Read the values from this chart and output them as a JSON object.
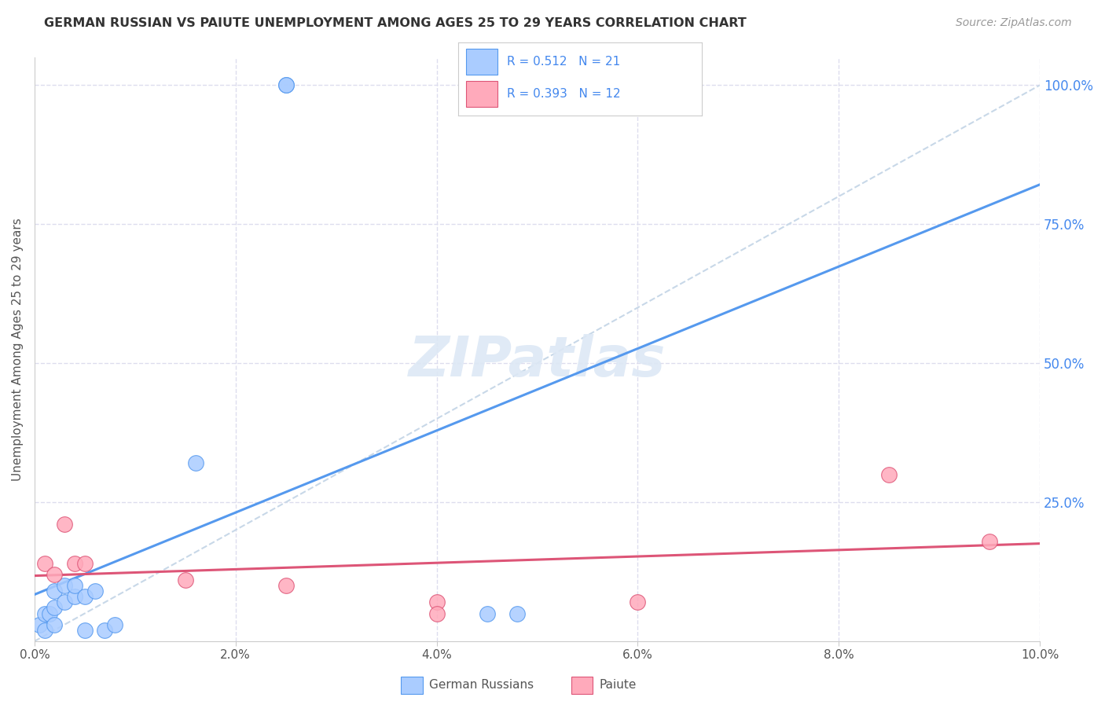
{
  "title": "GERMAN RUSSIAN VS PAIUTE UNEMPLOYMENT AMONG AGES 25 TO 29 YEARS CORRELATION CHART",
  "source": "Source: ZipAtlas.com",
  "ylabel": "Unemployment Among Ages 25 to 29 years",
  "xlim": [
    0.0,
    0.1
  ],
  "ylim": [
    0.0,
    1.05
  ],
  "xtick_labels": [
    "0.0%",
    "2.0%",
    "4.0%",
    "6.0%",
    "8.0%",
    "10.0%"
  ],
  "xtick_vals": [
    0.0,
    0.02,
    0.04,
    0.06,
    0.08,
    0.1
  ],
  "ytick_labels": [
    "25.0%",
    "50.0%",
    "75.0%",
    "100.0%"
  ],
  "ytick_vals": [
    0.25,
    0.5,
    0.75,
    1.0
  ],
  "german_russian_x": [
    0.0005,
    0.001,
    0.001,
    0.0015,
    0.002,
    0.002,
    0.002,
    0.003,
    0.003,
    0.004,
    0.004,
    0.005,
    0.005,
    0.006,
    0.007,
    0.008,
    0.016,
    0.025,
    0.025,
    0.045,
    0.048
  ],
  "german_russian_y": [
    0.03,
    0.02,
    0.05,
    0.05,
    0.03,
    0.06,
    0.09,
    0.07,
    0.1,
    0.08,
    0.1,
    0.08,
    0.02,
    0.09,
    0.02,
    0.03,
    0.32,
    1.0,
    1.0,
    0.05,
    0.05
  ],
  "paiute_x": [
    0.001,
    0.002,
    0.003,
    0.004,
    0.005,
    0.015,
    0.025,
    0.04,
    0.04,
    0.06,
    0.085,
    0.095
  ],
  "paiute_y": [
    0.14,
    0.12,
    0.21,
    0.14,
    0.14,
    0.11,
    0.1,
    0.07,
    0.05,
    0.07,
    0.3,
    0.18
  ],
  "german_russian_R": 0.512,
  "german_russian_N": 21,
  "paiute_R": 0.393,
  "paiute_N": 12,
  "color_german": "#aaccff",
  "color_german_line": "#5599ee",
  "color_paiute": "#ffaabb",
  "color_paiute_line": "#dd5577",
  "color_diagonal_line": "#c8d8e8",
  "color_ytick_label": "#4488ee",
  "color_title": "#333333",
  "color_source": "#999999",
  "background_color": "#ffffff",
  "grid_color": "#ddddee",
  "watermark_color": "#dde8f5"
}
